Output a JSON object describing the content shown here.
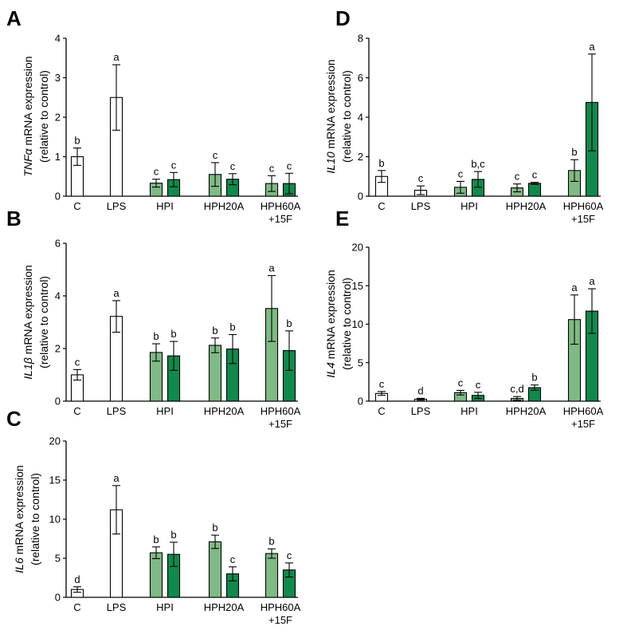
{
  "figure": {
    "colors": {
      "control": "#ffffff",
      "light_green": "#7fba84",
      "dark_green": "#0f8a4c",
      "axis": "#000000"
    }
  },
  "chart_data": [
    {
      "panel": "A",
      "type": "bar",
      "gene": "TNFα",
      "ylabel_suffix": " mRNA expression",
      "ylabel_line2": "(relative to control)",
      "ylim": [
        0,
        4
      ],
      "yticks": [
        0,
        1,
        2,
        3,
        4
      ],
      "groups": [
        {
          "label": "C",
          "label2": ""
        },
        {
          "label": "LPS",
          "label2": ""
        },
        {
          "label": "HPI",
          "label2": ""
        },
        {
          "label": "HPH20A",
          "label2": ""
        },
        {
          "label": "HPH60A",
          "label2": "+15F"
        }
      ],
      "bars": [
        {
          "group": 0,
          "color": "control",
          "value": 1.0,
          "err": 0.22,
          "sig": "b"
        },
        {
          "group": 1,
          "color": "control",
          "value": 2.5,
          "err": 0.83,
          "sig": "a"
        },
        {
          "group": 2,
          "color": "light_green",
          "value": 0.33,
          "err": 0.1,
          "sig": "c"
        },
        {
          "group": 2,
          "color": "dark_green",
          "value": 0.42,
          "err": 0.18,
          "sig": "c"
        },
        {
          "group": 3,
          "color": "light_green",
          "value": 0.55,
          "err": 0.3,
          "sig": "c"
        },
        {
          "group": 3,
          "color": "dark_green",
          "value": 0.43,
          "err": 0.14,
          "sig": "c"
        },
        {
          "group": 4,
          "color": "light_green",
          "value": 0.32,
          "err": 0.2,
          "sig": "c"
        },
        {
          "group": 4,
          "color": "dark_green",
          "value": 0.32,
          "err": 0.26,
          "sig": "c"
        }
      ]
    },
    {
      "panel": "B",
      "type": "bar",
      "gene": "IL1β",
      "ylabel_suffix": " mRNA expression",
      "ylabel_line2": "(relative to control)",
      "ylim": [
        0,
        6
      ],
      "yticks": [
        0,
        2,
        4,
        6
      ],
      "groups": [
        {
          "label": "C",
          "label2": ""
        },
        {
          "label": "LPS",
          "label2": ""
        },
        {
          "label": "HPI",
          "label2": ""
        },
        {
          "label": "HPH20A",
          "label2": ""
        },
        {
          "label": "HPH60A",
          "label2": "+15F"
        }
      ],
      "bars": [
        {
          "group": 0,
          "color": "control",
          "value": 1.0,
          "err": 0.2,
          "sig": "c"
        },
        {
          "group": 1,
          "color": "control",
          "value": 3.22,
          "err": 0.6,
          "sig": "a"
        },
        {
          "group": 2,
          "color": "light_green",
          "value": 1.85,
          "err": 0.33,
          "sig": "b"
        },
        {
          "group": 2,
          "color": "dark_green",
          "value": 1.72,
          "err": 0.55,
          "sig": "b"
        },
        {
          "group": 3,
          "color": "light_green",
          "value": 2.12,
          "err": 0.28,
          "sig": "b"
        },
        {
          "group": 3,
          "color": "dark_green",
          "value": 1.98,
          "err": 0.55,
          "sig": "b"
        },
        {
          "group": 4,
          "color": "light_green",
          "value": 3.52,
          "err": 1.25,
          "sig": "a"
        },
        {
          "group": 4,
          "color": "dark_green",
          "value": 1.92,
          "err": 0.75,
          "sig": "b"
        }
      ]
    },
    {
      "panel": "C",
      "type": "bar",
      "gene": "IL6",
      "ylabel_suffix": " mRNA expression",
      "ylabel_line2": "(relative to control)",
      "ylim": [
        0,
        20
      ],
      "yticks": [
        0,
        5,
        10,
        15,
        20
      ],
      "groups": [
        {
          "label": "C",
          "label2": ""
        },
        {
          "label": "LPS",
          "label2": ""
        },
        {
          "label": "HPI",
          "label2": ""
        },
        {
          "label": "HPH20A",
          "label2": ""
        },
        {
          "label": "HPH60A",
          "label2": "+15F"
        }
      ],
      "bars": [
        {
          "group": 0,
          "color": "control",
          "value": 1.0,
          "err": 0.35,
          "sig": "d"
        },
        {
          "group": 1,
          "color": "control",
          "value": 11.2,
          "err": 3.1,
          "sig": "a"
        },
        {
          "group": 2,
          "color": "light_green",
          "value": 5.7,
          "err": 0.75,
          "sig": "b"
        },
        {
          "group": 2,
          "color": "dark_green",
          "value": 5.5,
          "err": 1.55,
          "sig": "b"
        },
        {
          "group": 3,
          "color": "light_green",
          "value": 7.1,
          "err": 0.85,
          "sig": "b"
        },
        {
          "group": 3,
          "color": "dark_green",
          "value": 3.0,
          "err": 0.9,
          "sig": "c"
        },
        {
          "group": 4,
          "color": "light_green",
          "value": 5.6,
          "err": 0.6,
          "sig": "b"
        },
        {
          "group": 4,
          "color": "dark_green",
          "value": 3.5,
          "err": 0.9,
          "sig": "c"
        }
      ]
    },
    {
      "panel": "D",
      "type": "bar",
      "gene": "IL10",
      "ylabel_suffix": " mRNA expression",
      "ylabel_line2": "(relative to control)",
      "ylim": [
        0,
        8
      ],
      "yticks": [
        0,
        2,
        4,
        6,
        8
      ],
      "groups": [
        {
          "label": "C",
          "label2": ""
        },
        {
          "label": "LPS",
          "label2": ""
        },
        {
          "label": "HPI",
          "label2": ""
        },
        {
          "label": "HPH20A",
          "label2": ""
        },
        {
          "label": "HPH60A",
          "label2": "+15F"
        }
      ],
      "bars": [
        {
          "group": 0,
          "color": "control",
          "value": 1.0,
          "err": 0.3,
          "sig": "b"
        },
        {
          "group": 1,
          "color": "control",
          "value": 0.3,
          "err": 0.22,
          "sig": "c"
        },
        {
          "group": 2,
          "color": "light_green",
          "value": 0.45,
          "err": 0.3,
          "sig": "c"
        },
        {
          "group": 2,
          "color": "dark_green",
          "value": 0.85,
          "err": 0.4,
          "sig": "b,c"
        },
        {
          "group": 3,
          "color": "light_green",
          "value": 0.42,
          "err": 0.2,
          "sig": "c"
        },
        {
          "group": 3,
          "color": "dark_green",
          "value": 0.65,
          "err": 0.05,
          "sig": "c"
        },
        {
          "group": 4,
          "color": "light_green",
          "value": 1.3,
          "err": 0.55,
          "sig": "b"
        },
        {
          "group": 4,
          "color": "dark_green",
          "value": 4.75,
          "err": 2.45,
          "sig": "a"
        }
      ]
    },
    {
      "panel": "E",
      "type": "bar",
      "gene": "IL4",
      "ylabel_suffix": " mRNA expression",
      "ylabel_line2": "(relative to control)",
      "ylim": [
        0,
        20
      ],
      "yticks": [
        0,
        5,
        10,
        15,
        20
      ],
      "groups": [
        {
          "label": "C",
          "label2": ""
        },
        {
          "label": "LPS",
          "label2": ""
        },
        {
          "label": "HPI",
          "label2": ""
        },
        {
          "label": "HPH20A",
          "label2": ""
        },
        {
          "label": "HPH60A",
          "label2": "+15F"
        }
      ],
      "bars": [
        {
          "group": 0,
          "color": "control",
          "value": 1.0,
          "err": 0.25,
          "sig": "c"
        },
        {
          "group": 1,
          "color": "control",
          "value": 0.25,
          "err": 0.12,
          "sig": "d"
        },
        {
          "group": 2,
          "color": "light_green",
          "value": 1.1,
          "err": 0.3,
          "sig": "c"
        },
        {
          "group": 2,
          "color": "dark_green",
          "value": 0.75,
          "err": 0.4,
          "sig": "c"
        },
        {
          "group": 3,
          "color": "light_green",
          "value": 0.35,
          "err": 0.25,
          "sig": "c,d"
        },
        {
          "group": 3,
          "color": "dark_green",
          "value": 1.75,
          "err": 0.35,
          "sig": "b"
        },
        {
          "group": 4,
          "color": "light_green",
          "value": 10.6,
          "err": 3.2,
          "sig": "a"
        },
        {
          "group": 4,
          "color": "dark_green",
          "value": 11.7,
          "err": 2.9,
          "sig": "a"
        }
      ]
    }
  ]
}
